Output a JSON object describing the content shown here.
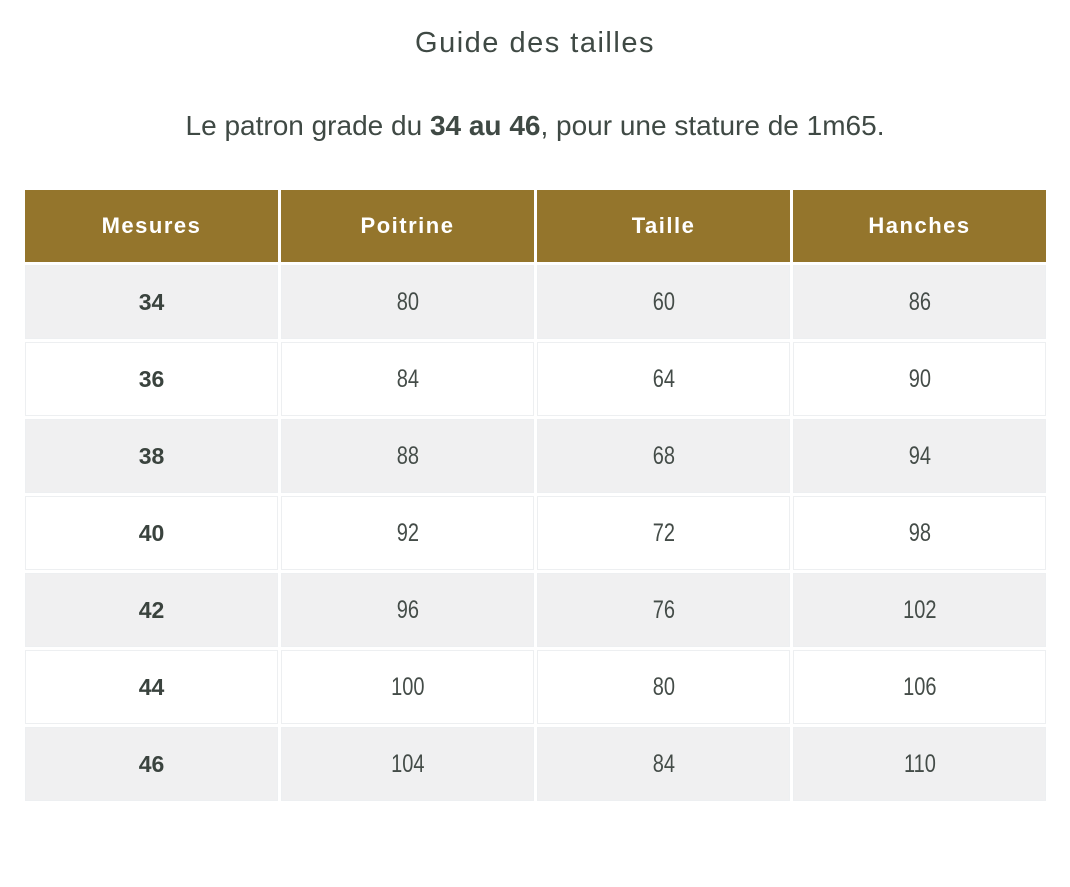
{
  "page": {
    "title": "Guide des tailles",
    "subtitle": {
      "prefix": "Le patron grade du ",
      "bold": "34 au 46",
      "suffix": ", pour une stature de 1m65."
    }
  },
  "table": {
    "headers": [
      "Mesures",
      "Poitrine",
      "Taille",
      "Hanches"
    ],
    "rows": [
      {
        "mesures": "34",
        "poitrine": "80",
        "taille": "60",
        "hanches": "86"
      },
      {
        "mesures": "36",
        "poitrine": "84",
        "taille": "64",
        "hanches": "90"
      },
      {
        "mesures": "38",
        "poitrine": "88",
        "taille": "68",
        "hanches": "94"
      },
      {
        "mesures": "40",
        "poitrine": "92",
        "taille": "72",
        "hanches": "98"
      },
      {
        "mesures": "42",
        "poitrine": "96",
        "taille": "76",
        "hanches": "102"
      },
      {
        "mesures": "44",
        "poitrine": "100",
        "taille": "80",
        "hanches": "106"
      },
      {
        "mesures": "46",
        "poitrine": "104",
        "taille": "84",
        "hanches": "110"
      }
    ]
  },
  "colors": {
    "header_background": "#94752c",
    "header_text": "#ffffff",
    "body_text": "#3e4641",
    "row_alternate_background": "#f0f0f1",
    "row_background": "#ffffff"
  }
}
